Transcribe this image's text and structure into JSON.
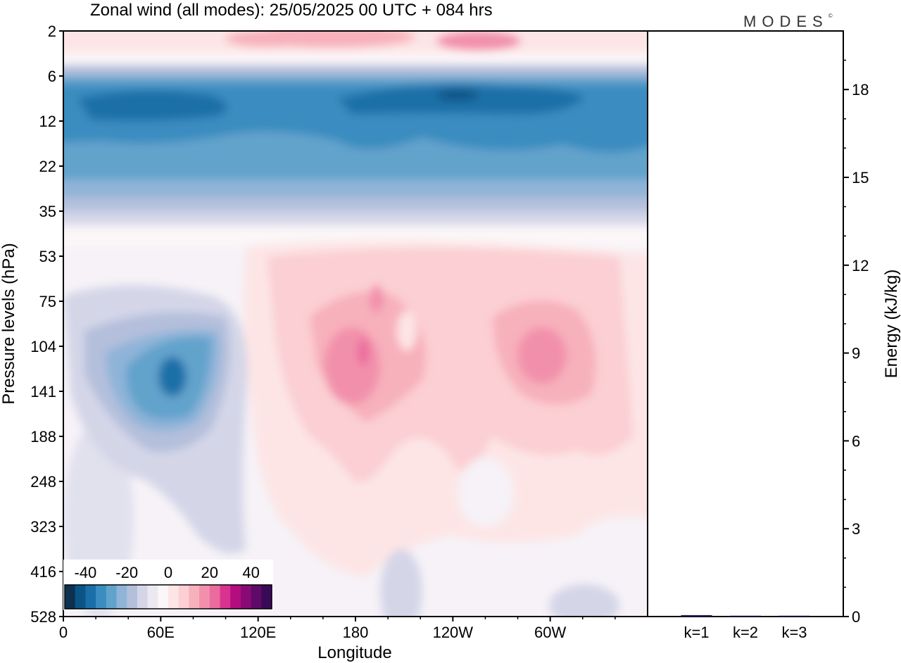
{
  "title": "Zonal wind (all modes):  25/05/2025  00 UTC  + 084 hrs",
  "brand": "MODES",
  "brand_mark": "©",
  "colors": {
    "scale": [
      "#0d3150",
      "#0b5586",
      "#1a6fa8",
      "#3b8cc0",
      "#62a3cc",
      "#8fb4d8",
      "#b4bfdb",
      "#d4d6e8",
      "#ece8f2",
      "#fbf6f8",
      "#fde5e5",
      "#fbcfd3",
      "#f7b1bb",
      "#f290ab",
      "#eb6b9e",
      "#d9338f",
      "#b30d80",
      "#8a0a75",
      "#5f0a68",
      "#3a0a57"
    ]
  },
  "chart_data": [
    {
      "type": "heatmap",
      "xlabel": "Longitude",
      "ylabel": "Pressure levels (hPa)",
      "x_ticks": [
        "0",
        "60E",
        "120E",
        "180",
        "120W",
        "60W"
      ],
      "x_tick_values": [
        0,
        60,
        120,
        180,
        240,
        300
      ],
      "xlim": [
        0,
        360
      ],
      "y_ticks": [
        "2",
        "6",
        "12",
        "22",
        "35",
        "53",
        "75",
        "104",
        "141",
        "188",
        "248",
        "323",
        "416",
        "528"
      ],
      "colorbar": {
        "ticks": [
          "-40",
          "-20",
          "0",
          "20",
          "40"
        ],
        "tick_values": [
          -40,
          -20,
          0,
          20,
          40
        ],
        "range": [
          -50,
          50
        ],
        "step": 5
      },
      "features": [
        {
          "level": 10,
          "lon": 180,
          "value": -35
        },
        {
          "level": 9,
          "lon": 230,
          "value": -40
        },
        {
          "level": 130,
          "lon": 64,
          "value": -30
        },
        {
          "level": 130,
          "lon": 185,
          "value": 20
        },
        {
          "level": 120,
          "lon": 295,
          "value": 18
        },
        {
          "level": 3,
          "lon": 155,
          "value": 12
        },
        {
          "level": 3,
          "lon": 260,
          "value": 14
        }
      ]
    },
    {
      "type": "bar",
      "ylabel": "Energy (kJ/kg)",
      "categories": [
        "k=1",
        "k=2",
        "k=3"
      ],
      "values": [
        0.05,
        0.03,
        0.03
      ],
      "ylim": [
        0,
        20
      ],
      "y_ticks": [
        "0",
        "3",
        "6",
        "9",
        "12",
        "15",
        "18"
      ],
      "y_tick_values": [
        0,
        3,
        6,
        9,
        12,
        15,
        18
      ]
    }
  ]
}
